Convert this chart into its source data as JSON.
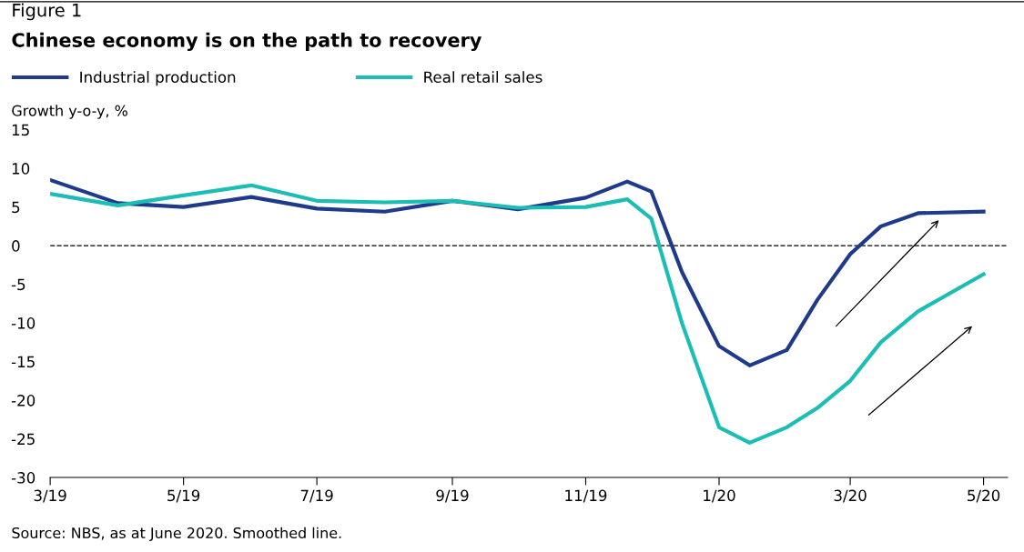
{
  "chart_data": {
    "type": "line",
    "subtitle": "Figure 1",
    "title": "Chinese economy is on the path to recovery",
    "ylabel": "Growth y-o-y, %",
    "legend": "top left",
    "grid": false,
    "marker": "none",
    "line_style": "solid",
    "xlim": [
      "2019-03-01",
      "2020-05-12"
    ],
    "xticks": [
      {
        "value": "2019-03-01",
        "label": "3/19"
      },
      {
        "value": "2019-05-01",
        "label": "5/19"
      },
      {
        "value": "2019-07-01",
        "label": "7/19"
      },
      {
        "value": "2019-09-01",
        "label": "9/19"
      },
      {
        "value": "2019-11-01",
        "label": "11/19"
      },
      {
        "value": "2020-01-01",
        "label": "1/20"
      },
      {
        "value": "2020-03-01",
        "label": "3/20"
      },
      {
        "value": "2020-05-01",
        "label": "5/20"
      }
    ],
    "ylim": [
      -30,
      15
    ],
    "yticks": [
      -30,
      -25,
      -20,
      -15,
      -10,
      -5,
      0,
      5,
      10,
      15
    ],
    "ref_lines": [
      {
        "axis": "y",
        "value": 0,
        "label": null,
        "color": "#000000",
        "line_style": "dashed"
      }
    ],
    "x": [
      "2019-03-01",
      "2019-04-01",
      "2019-05-01",
      "2019-06-01",
      "2019-07-01",
      "2019-08-01",
      "2019-09-01",
      "2019-10-01",
      "2019-11-01",
      "2019-11-20",
      "2019-12-01",
      "2019-12-15",
      "2020-01-01",
      "2020-01-15",
      "2020-02-01",
      "2020-02-15",
      "2020-03-01",
      "2020-03-15",
      "2020-04-01",
      "2020-05-01"
    ],
    "series": [
      {
        "name": "Industrial production",
        "color": "#1f3a8a",
        "values": [
          8.5,
          5.5,
          5.0,
          6.3,
          4.8,
          4.4,
          5.8,
          4.7,
          6.2,
          8.3,
          7.0,
          -3.4,
          -13.0,
          -15.5,
          -13.5,
          -7.0,
          -1.1,
          2.5,
          4.2,
          4.4
        ]
      },
      {
        "name": "Real retail sales",
        "color": "#1bbdb5",
        "values": [
          6.7,
          5.2,
          6.5,
          7.8,
          5.8,
          5.6,
          5.8,
          4.9,
          5.0,
          6.0,
          3.5,
          -10.0,
          -23.5,
          -25.5,
          -23.5,
          -21.0,
          -17.5,
          -12.5,
          -8.5,
          -3.7
        ]
      }
    ],
    "annotations": [
      "Source: NBS, as at June 2020. Smoothed line."
    ]
  }
}
